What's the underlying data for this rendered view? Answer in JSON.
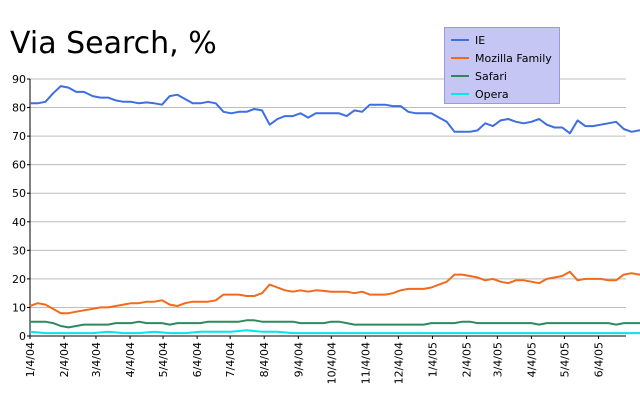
{
  "chart_data": {
    "type": "line",
    "title": "Via Search, %",
    "ylim": [
      0,
      90
    ],
    "yticks": [
      0,
      10,
      20,
      30,
      40,
      50,
      60,
      70,
      80,
      90
    ],
    "xticks": [
      "1/4/04",
      "2/4/04",
      "3/4/04",
      "4/4/04",
      "5/4/04",
      "6/4/04",
      "7/4/04",
      "8/4/04",
      "9/4/04",
      "10/4/04",
      "11/4/04",
      "12/4/04",
      "1/4/05",
      "2/4/05",
      "3/4/05",
      "4/4/05",
      "5/4/05",
      "6/4/05"
    ],
    "x_range": [
      "1/4/04",
      "6/29/05"
    ],
    "grid": "horizontal",
    "legend": "top-right",
    "series": [
      {
        "name": "IE",
        "color": "#3d6fe0",
        "points": [
          [
            "1/4/04",
            81.5
          ],
          [
            "1/11/04",
            81.5
          ],
          [
            "1/18/04",
            82
          ],
          [
            "1/25/04",
            85
          ],
          [
            "2/1/04",
            87.5
          ],
          [
            "2/8/04",
            87
          ],
          [
            "2/15/04",
            85.5
          ],
          [
            "2/22/04",
            85.5
          ],
          [
            "3/1/04",
            84
          ],
          [
            "3/8/04",
            83.5
          ],
          [
            "3/15/04",
            83.5
          ],
          [
            "3/22/04",
            82.5
          ],
          [
            "3/29/04",
            82
          ],
          [
            "4/5/04",
            82
          ],
          [
            "4/12/04",
            81.5
          ],
          [
            "4/19/04",
            81.8
          ],
          [
            "4/26/04",
            81.5
          ],
          [
            "5/3/04",
            81
          ],
          [
            "5/10/04",
            84
          ],
          [
            "5/17/04",
            84.5
          ],
          [
            "5/24/04",
            83
          ],
          [
            "5/31/04",
            81.5
          ],
          [
            "6/7/04",
            81.5
          ],
          [
            "6/14/04",
            82
          ],
          [
            "6/21/04",
            81.5
          ],
          [
            "6/28/04",
            78.5
          ],
          [
            "7/5/04",
            78
          ],
          [
            "7/12/04",
            78.5
          ],
          [
            "7/19/04",
            78.5
          ],
          [
            "7/26/04",
            79.5
          ],
          [
            "8/2/04",
            79
          ],
          [
            "8/9/04",
            74
          ],
          [
            "8/16/04",
            76
          ],
          [
            "8/23/04",
            77
          ],
          [
            "8/30/04",
            77
          ],
          [
            "9/6/04",
            78
          ],
          [
            "9/13/04",
            76.5
          ],
          [
            "9/20/04",
            78
          ],
          [
            "9/27/04",
            78
          ],
          [
            "10/4/04",
            78
          ],
          [
            "10/11/04",
            78
          ],
          [
            "10/18/04",
            77
          ],
          [
            "10/25/04",
            79
          ],
          [
            "11/1/04",
            78.5
          ],
          [
            "11/8/04",
            81
          ],
          [
            "11/15/04",
            81
          ],
          [
            "11/22/04",
            81
          ],
          [
            "11/29/04",
            80.5
          ],
          [
            "12/6/04",
            80.5
          ],
          [
            "12/13/04",
            78.5
          ],
          [
            "12/20/04",
            78
          ],
          [
            "12/27/04",
            78
          ],
          [
            "1/3/05",
            78
          ],
          [
            "1/10/05",
            76.5
          ],
          [
            "1/17/05",
            75
          ],
          [
            "1/24/05",
            71.5
          ],
          [
            "1/31/05",
            71.5
          ],
          [
            "2/7/05",
            71.5
          ],
          [
            "2/14/05",
            72
          ],
          [
            "2/21/05",
            74.5
          ],
          [
            "2/28/05",
            73.5
          ],
          [
            "3/7/05",
            75.5
          ],
          [
            "3/14/05",
            76
          ],
          [
            "3/21/05",
            75
          ],
          [
            "3/28/05",
            74.5
          ],
          [
            "4/4/05",
            75
          ],
          [
            "4/11/05",
            76
          ],
          [
            "4/18/05",
            74
          ],
          [
            "4/25/05",
            73
          ],
          [
            "5/2/05",
            73
          ],
          [
            "5/9/05",
            71
          ],
          [
            "5/16/05",
            75.5
          ],
          [
            "5/23/05",
            73.5
          ],
          [
            "5/30/05",
            73.5
          ],
          [
            "6/6/05",
            74
          ],
          [
            "6/13/05",
            74.5
          ],
          [
            "6/20/05",
            75
          ],
          [
            "6/27/05",
            72.5
          ],
          [
            "7/4/05",
            71.5
          ],
          [
            "7/11/05",
            72
          ],
          [
            "7/18/05",
            72
          ],
          [
            "7/25/05",
            70.5
          ]
        ]
      },
      {
        "name": "Mozilla Family",
        "color": "#f26a1b",
        "points": [
          [
            "1/4/04",
            10.5
          ],
          [
            "1/11/04",
            11.5
          ],
          [
            "1/18/04",
            11
          ],
          [
            "1/25/04",
            9.5
          ],
          [
            "2/1/04",
            8
          ],
          [
            "2/8/04",
            8
          ],
          [
            "2/15/04",
            8.5
          ],
          [
            "2/22/04",
            9
          ],
          [
            "3/1/04",
            9.5
          ],
          [
            "3/8/04",
            10
          ],
          [
            "3/15/04",
            10
          ],
          [
            "3/22/04",
            10.5
          ],
          [
            "3/29/04",
            11
          ],
          [
            "4/5/04",
            11.5
          ],
          [
            "4/12/04",
            11.5
          ],
          [
            "4/19/04",
            12
          ],
          [
            "4/26/04",
            12
          ],
          [
            "5/3/04",
            12.5
          ],
          [
            "5/10/04",
            11
          ],
          [
            "5/17/04",
            10.5
          ],
          [
            "5/24/04",
            11.5
          ],
          [
            "5/31/04",
            12
          ],
          [
            "6/7/04",
            12
          ],
          [
            "6/14/04",
            12
          ],
          [
            "6/21/04",
            12.5
          ],
          [
            "6/28/04",
            14.5
          ],
          [
            "7/5/04",
            14.5
          ],
          [
            "7/12/04",
            14.5
          ],
          [
            "7/19/04",
            14
          ],
          [
            "7/26/04",
            14
          ],
          [
            "8/2/04",
            15
          ],
          [
            "8/9/04",
            18
          ],
          [
            "8/16/04",
            17
          ],
          [
            "8/23/04",
            16
          ],
          [
            "8/30/04",
            15.5
          ],
          [
            "9/6/04",
            16
          ],
          [
            "9/13/04",
            15.5
          ],
          [
            "9/20/04",
            16
          ],
          [
            "9/27/04",
            15.8
          ],
          [
            "10/4/04",
            15.5
          ],
          [
            "10/11/04",
            15.5
          ],
          [
            "10/18/04",
            15.5
          ],
          [
            "10/25/04",
            15
          ],
          [
            "11/1/04",
            15.5
          ],
          [
            "11/8/04",
            14.5
          ],
          [
            "11/15/04",
            14.5
          ],
          [
            "11/22/04",
            14.5
          ],
          [
            "11/29/04",
            15
          ],
          [
            "12/6/04",
            16
          ],
          [
            "12/13/04",
            16.5
          ],
          [
            "12/20/04",
            16.5
          ],
          [
            "12/27/04",
            16.5
          ],
          [
            "1/3/05",
            17
          ],
          [
            "1/10/05",
            18
          ],
          [
            "1/17/05",
            19
          ],
          [
            "1/24/05",
            21.5
          ],
          [
            "1/31/05",
            21.5
          ],
          [
            "2/7/05",
            21
          ],
          [
            "2/14/05",
            20.5
          ],
          [
            "2/21/05",
            19.5
          ],
          [
            "2/28/05",
            20
          ],
          [
            "3/7/05",
            19
          ],
          [
            "3/14/05",
            18.5
          ],
          [
            "3/21/05",
            19.5
          ],
          [
            "3/28/05",
            19.5
          ],
          [
            "4/4/05",
            19
          ],
          [
            "4/11/05",
            18.5
          ],
          [
            "4/18/05",
            20
          ],
          [
            "4/25/05",
            20.5
          ],
          [
            "5/2/05",
            21
          ],
          [
            "5/9/05",
            22.5
          ],
          [
            "5/16/05",
            19.5
          ],
          [
            "5/23/05",
            20
          ],
          [
            "5/30/05",
            20
          ],
          [
            "6/6/05",
            20
          ],
          [
            "6/13/05",
            19.5
          ],
          [
            "6/20/05",
            19.5
          ],
          [
            "6/27/05",
            21.5
          ],
          [
            "7/4/05",
            22
          ],
          [
            "7/11/05",
            21.5
          ],
          [
            "7/18/05",
            22.5
          ],
          [
            "7/25/05",
            23
          ]
        ]
      },
      {
        "name": "Safari",
        "color": "#2e8a5e",
        "points": [
          [
            "1/4/04",
            5
          ],
          [
            "1/11/04",
            5
          ],
          [
            "1/18/04",
            5
          ],
          [
            "1/25/04",
            4.5
          ],
          [
            "2/1/04",
            3.5
          ],
          [
            "2/8/04",
            3
          ],
          [
            "2/15/04",
            3.5
          ],
          [
            "2/22/04",
            4
          ],
          [
            "3/1/04",
            4
          ],
          [
            "3/8/04",
            4
          ],
          [
            "3/15/04",
            4
          ],
          [
            "3/22/04",
            4.5
          ],
          [
            "3/29/04",
            4.5
          ],
          [
            "4/5/04",
            4.5
          ],
          [
            "4/12/04",
            5
          ],
          [
            "4/19/04",
            4.5
          ],
          [
            "4/26/04",
            4.5
          ],
          [
            "5/3/04",
            4.5
          ],
          [
            "5/10/04",
            4
          ],
          [
            "5/17/04",
            4.5
          ],
          [
            "5/24/04",
            4.5
          ],
          [
            "5/31/04",
            4.5
          ],
          [
            "6/7/04",
            4.5
          ],
          [
            "6/14/04",
            5
          ],
          [
            "6/21/04",
            5
          ],
          [
            "6/28/04",
            5
          ],
          [
            "7/5/04",
            5
          ],
          [
            "7/12/04",
            5
          ],
          [
            "7/19/04",
            5.5
          ],
          [
            "7/26/04",
            5.5
          ],
          [
            "8/2/04",
            5
          ],
          [
            "8/9/04",
            5
          ],
          [
            "8/16/04",
            5
          ],
          [
            "8/23/04",
            5
          ],
          [
            "8/30/04",
            5
          ],
          [
            "9/6/04",
            4.5
          ],
          [
            "9/13/04",
            4.5
          ],
          [
            "9/20/04",
            4.5
          ],
          [
            "9/27/04",
            4.5
          ],
          [
            "10/4/04",
            5
          ],
          [
            "10/11/04",
            5
          ],
          [
            "10/18/04",
            4.5
          ],
          [
            "10/25/04",
            4
          ],
          [
            "11/1/04",
            4
          ],
          [
            "11/8/04",
            4
          ],
          [
            "11/15/04",
            4
          ],
          [
            "11/22/04",
            4
          ],
          [
            "11/29/04",
            4
          ],
          [
            "12/6/04",
            4
          ],
          [
            "12/13/04",
            4
          ],
          [
            "12/20/04",
            4
          ],
          [
            "12/27/04",
            4
          ],
          [
            "1/3/05",
            4.5
          ],
          [
            "1/10/05",
            4.5
          ],
          [
            "1/17/05",
            4.5
          ],
          [
            "1/24/05",
            4.5
          ],
          [
            "1/31/05",
            5
          ],
          [
            "2/7/05",
            5
          ],
          [
            "2/14/05",
            4.5
          ],
          [
            "2/21/05",
            4.5
          ],
          [
            "2/28/05",
            4.5
          ],
          [
            "3/7/05",
            4.5
          ],
          [
            "3/14/05",
            4.5
          ],
          [
            "3/21/05",
            4.5
          ],
          [
            "3/28/05",
            4.5
          ],
          [
            "4/4/05",
            4.5
          ],
          [
            "4/11/05",
            4
          ],
          [
            "4/18/05",
            4.5
          ],
          [
            "4/25/05",
            4.5
          ],
          [
            "5/2/05",
            4.5
          ],
          [
            "5/9/05",
            4.5
          ],
          [
            "5/16/05",
            4.5
          ],
          [
            "5/23/05",
            4.5
          ],
          [
            "5/30/05",
            4.5
          ],
          [
            "6/6/05",
            4.5
          ],
          [
            "6/13/05",
            4.5
          ],
          [
            "6/20/05",
            4
          ],
          [
            "6/27/05",
            4.5
          ],
          [
            "7/4/05",
            4.5
          ],
          [
            "7/11/05",
            4.5
          ],
          [
            "7/18/05",
            4.5
          ],
          [
            "7/25/05",
            4.5
          ]
        ]
      },
      {
        "name": "Opera",
        "color": "#00e5ee",
        "points": [
          [
            "1/4/04",
            1.5
          ],
          [
            "1/18/04",
            1
          ],
          [
            "2/1/04",
            1
          ],
          [
            "2/15/04",
            1
          ],
          [
            "3/1/04",
            1
          ],
          [
            "3/15/04",
            1.5
          ],
          [
            "3/29/04",
            1
          ],
          [
            "4/12/04",
            1
          ],
          [
            "4/26/04",
            1.5
          ],
          [
            "5/10/04",
            1
          ],
          [
            "5/24/04",
            1
          ],
          [
            "6/7/04",
            1.5
          ],
          [
            "6/21/04",
            1.5
          ],
          [
            "7/5/04",
            1.5
          ],
          [
            "7/19/04",
            2
          ],
          [
            "8/2/04",
            1.5
          ],
          [
            "8/16/04",
            1.5
          ],
          [
            "8/30/04",
            1
          ],
          [
            "9/13/04",
            1
          ],
          [
            "9/27/04",
            1
          ],
          [
            "10/11/04",
            1
          ],
          [
            "10/25/04",
            1
          ],
          [
            "11/8/04",
            1
          ],
          [
            "11/22/04",
            1
          ],
          [
            "12/6/04",
            1
          ],
          [
            "12/20/04",
            1
          ],
          [
            "1/3/05",
            1
          ],
          [
            "1/17/05",
            1
          ],
          [
            "1/31/05",
            1
          ],
          [
            "2/14/05",
            1
          ],
          [
            "2/28/05",
            1
          ],
          [
            "3/14/05",
            1
          ],
          [
            "3/28/05",
            1
          ],
          [
            "4/11/05",
            1
          ],
          [
            "4/25/05",
            1
          ],
          [
            "5/9/05",
            1
          ],
          [
            "5/23/05",
            1
          ],
          [
            "6/6/05",
            1
          ],
          [
            "6/20/05",
            1
          ],
          [
            "7/4/05",
            1
          ],
          [
            "7/18/05",
            1
          ],
          [
            "7/25/05",
            1
          ]
        ]
      }
    ]
  }
}
